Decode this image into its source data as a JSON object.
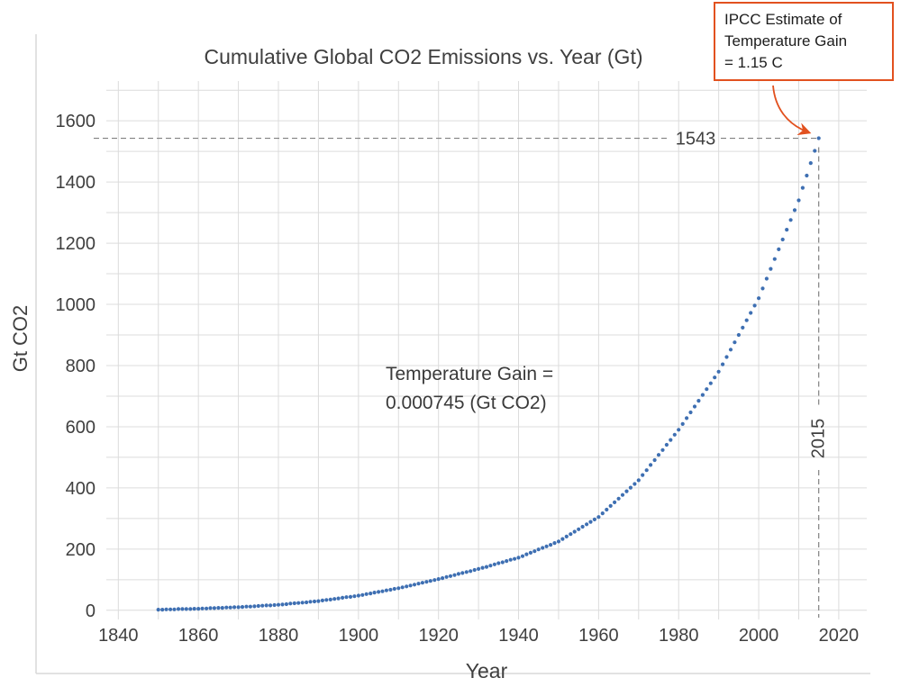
{
  "page": {
    "background": "#ffffff"
  },
  "chart_data": {
    "type": "scatter",
    "title": "Cumulative Global CO2 Emissions vs. Year (Gt)",
    "xlabel": "Year",
    "ylabel": "Gt CO2",
    "x_ticks": [
      1840,
      1860,
      1880,
      1900,
      1920,
      1940,
      1960,
      1980,
      2000,
      2020
    ],
    "y_ticks": [
      0,
      200,
      400,
      600,
      800,
      1000,
      1200,
      1400,
      1600
    ],
    "xlim": [
      1837,
      2027
    ],
    "ylim": [
      -30,
      1730
    ],
    "grid": {
      "x_minor_step": 10,
      "y_minor_step": 100,
      "y_max_line": 1700,
      "color": "#dcdcdc",
      "on": true
    },
    "point_color": "#3e6fb2",
    "dash_color": "#808080",
    "accent_color": "#e2511f",
    "legend": "none",
    "series": [
      {
        "name": "Cumulative CO2 emissions",
        "x": [
          1850,
          1851,
          1852,
          1853,
          1854,
          1855,
          1856,
          1857,
          1858,
          1859,
          1860,
          1861,
          1862,
          1863,
          1864,
          1865,
          1866,
          1867,
          1868,
          1869,
          1870,
          1871,
          1872,
          1873,
          1874,
          1875,
          1876,
          1877,
          1878,
          1879,
          1880,
          1881,
          1882,
          1883,
          1884,
          1885,
          1886,
          1887,
          1888,
          1889,
          1890,
          1891,
          1892,
          1893,
          1894,
          1895,
          1896,
          1897,
          1898,
          1899,
          1900,
          1901,
          1902,
          1903,
          1904,
          1905,
          1906,
          1907,
          1908,
          1909,
          1910,
          1911,
          1912,
          1913,
          1914,
          1915,
          1916,
          1917,
          1918,
          1919,
          1920,
          1921,
          1922,
          1923,
          1924,
          1925,
          1926,
          1927,
          1928,
          1929,
          1930,
          1931,
          1932,
          1933,
          1934,
          1935,
          1936,
          1937,
          1938,
          1939,
          1940,
          1941,
          1942,
          1943,
          1944,
          1945,
          1946,
          1947,
          1948,
          1949,
          1950,
          1951,
          1952,
          1953,
          1954,
          1955,
          1956,
          1957,
          1958,
          1959,
          1960,
          1961,
          1962,
          1963,
          1964,
          1965,
          1966,
          1967,
          1968,
          1969,
          1970,
          1971,
          1972,
          1973,
          1974,
          1975,
          1976,
          1977,
          1978,
          1979,
          1980,
          1981,
          1982,
          1983,
          1984,
          1985,
          1986,
          1987,
          1988,
          1989,
          1990,
          1991,
          1992,
          1993,
          1994,
          1995,
          1996,
          1997,
          1998,
          1999,
          2000,
          2001,
          2002,
          2003,
          2004,
          2005,
          2006,
          2007,
          2008,
          2009,
          2010,
          2011,
          2012,
          2013,
          2014,
          2015
        ],
        "y": [
          2,
          2,
          3,
          3,
          3,
          4,
          4,
          4,
          4,
          5,
          5,
          6,
          6,
          7,
          7,
          8,
          8,
          9,
          9,
          10,
          10,
          11,
          12,
          12,
          13,
          14,
          15,
          16,
          16,
          17,
          18,
          19,
          20,
          22,
          23,
          24,
          25,
          26,
          28,
          29,
          30,
          32,
          34,
          35,
          37,
          39,
          41,
          43,
          44,
          46,
          48,
          50,
          53,
          55,
          58,
          60,
          62,
          65,
          67,
          70,
          72,
          75,
          78,
          81,
          84,
          87,
          90,
          93,
          96,
          99,
          102,
          105,
          109,
          112,
          115,
          119,
          122,
          125,
          128,
          132,
          135,
          139,
          142,
          146,
          150,
          154,
          157,
          161,
          165,
          168,
          172,
          177,
          183,
          188,
          193,
          199,
          204,
          209,
          214,
          220,
          225,
          233,
          241,
          249,
          257,
          265,
          273,
          281,
          289,
          297,
          305,
          317,
          329,
          341,
          353,
          365,
          377,
          389,
          401,
          413,
          425,
          442,
          458,
          475,
          491,
          508,
          524,
          541,
          557,
          574,
          590,
          609,
          628,
          647,
          666,
          685,
          704,
          723,
          742,
          761,
          780,
          804,
          828,
          852,
          876,
          900,
          924,
          948,
          972,
          996,
          1020,
          1052,
          1084,
          1116,
          1148,
          1180,
          1212,
          1244,
          1276,
          1308,
          1340,
          1381,
          1421,
          1462,
          1502,
          1543
        ]
      }
    ],
    "annotations": {
      "value_label": {
        "text": "1543",
        "y": 1543
      },
      "year_label": {
        "text": "2015",
        "x": 2015
      },
      "slope_note_line1": "Temperature Gain =",
      "slope_note_line2": "0.000745 (Gt CO2)",
      "callout": {
        "line1": "IPCC Estimate of",
        "line2": "Temperature Gain",
        "line3": "= 1.15 C",
        "border_color": "#e2511f"
      }
    }
  }
}
